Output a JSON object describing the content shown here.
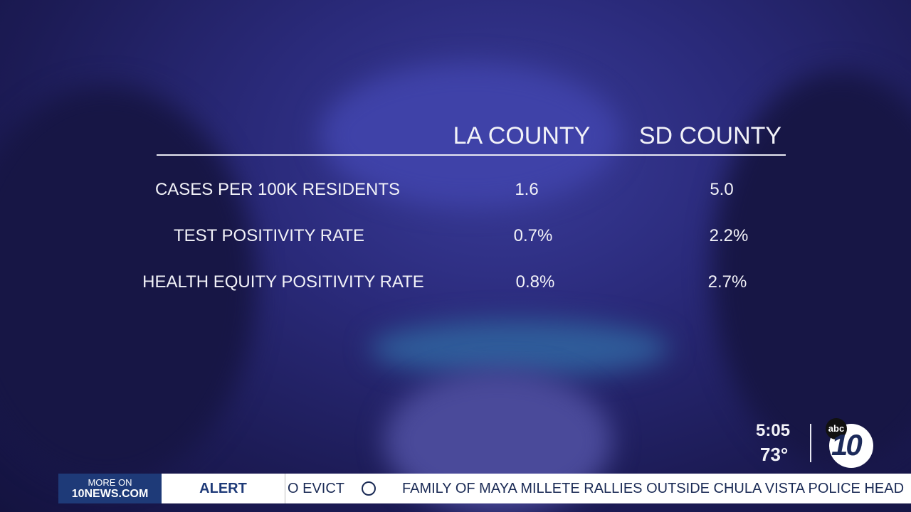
{
  "table": {
    "columns": [
      "LA COUNTY",
      "SD COUNTY"
    ],
    "rows": [
      [
        "CASES PER 100K RESIDENTS",
        "1.6",
        "5.0"
      ],
      [
        "TEST POSITIVITY RATE",
        "0.7%",
        "2.2%"
      ],
      [
        "HEALTH EQUITY POSITIVITY RATE",
        "0.8%",
        "2.7%"
      ]
    ]
  },
  "bug": {
    "time": "5:05",
    "temperature": "73°",
    "logo_network": "abc",
    "logo_channel": "10"
  },
  "ticker": {
    "more_on": "MORE ON",
    "site": "10NEWS.COM",
    "label": "ALERT",
    "items": [
      "O EVICT",
      "FAMILY OF MAYA MILLETE RALLIES OUTSIDE CHULA VISTA POLICE HEAD"
    ]
  }
}
